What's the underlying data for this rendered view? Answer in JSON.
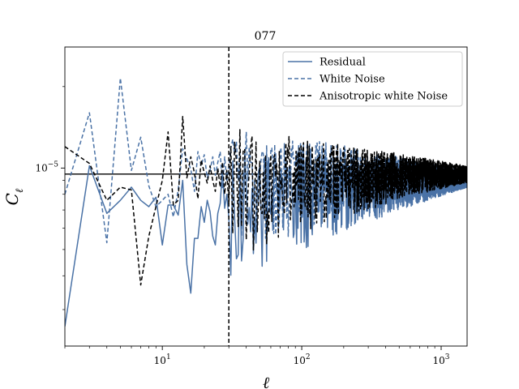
{
  "chart_data": {
    "type": "line",
    "title": "077",
    "xlabel": "ℓ",
    "ylabel": "C",
    "ylabel_subscript": "ℓ",
    "xscale": "log",
    "yscale": "log",
    "xlim": [
      2,
      1535
    ],
    "ylim": [
      2.2e-06,
      2.8e-05
    ],
    "x_ticks": [
      {
        "value": 10,
        "base": "10",
        "exp": "1"
      },
      {
        "value": 100,
        "base": "10",
        "exp": "2"
      },
      {
        "value": 1000,
        "base": "10",
        "exp": "3"
      }
    ],
    "y_ticks": [
      {
        "value": 1e-05,
        "base": "10",
        "exp": "−5"
      }
    ],
    "reference_lines": {
      "horizontal_y": 9.5e-06,
      "vertical_x": 30
    },
    "legend": {
      "position": "top-right",
      "entries": [
        {
          "label": "Residual",
          "color": "#4a72a6",
          "style": "solid"
        },
        {
          "label": "White Noise",
          "color": "#4a72a6",
          "style": "dashed"
        },
        {
          "label": "Anisotropic white Noise",
          "color": "#000000",
          "style": "dashed"
        }
      ]
    },
    "series": [
      {
        "name": "Residual",
        "color": "#4a72a6",
        "style": "solid",
        "x": [
          2,
          3,
          4,
          5,
          6,
          7,
          8,
          9,
          10,
          11,
          12,
          13,
          14,
          15,
          16,
          17,
          18,
          19,
          20,
          21,
          22,
          23,
          24,
          25,
          26,
          27,
          28,
          29
        ],
        "values": [
          2.6e-06,
          1.02e-05,
          6.8e-06,
          7.6e-06,
          8.5e-06,
          7.6e-06,
          7.2e-06,
          7.8e-06,
          5.2e-06,
          7.3e-06,
          7.3e-06,
          6.7e-06,
          9e-06,
          4.4e-06,
          3.45e-06,
          5.5e-06,
          5.5e-06,
          7.2e-06,
          6.3e-06,
          7.6e-06,
          6.9e-06,
          5.6e-06,
          5.2e-06,
          6.8e-06,
          7.4e-06,
          9.8e-06,
          7.1e-06,
          8e-06
        ]
      },
      {
        "name": "White Noise",
        "color": "#4a72a6",
        "style": "dashed",
        "x": [
          2,
          3,
          4,
          5,
          6,
          7,
          8,
          9,
          10,
          11,
          12,
          13,
          14,
          15,
          16,
          17,
          18,
          19,
          20,
          21,
          22,
          23,
          24,
          25,
          26,
          27,
          28,
          29
        ],
        "values": [
          8e-06,
          1.6e-05,
          5.3e-06,
          2.15e-05,
          9.8e-06,
          1.3e-05,
          8.6e-06,
          7.2e-06,
          7.6e-06,
          8e-06,
          6.6e-06,
          8.3e-06,
          1.18e-05,
          1.08e-05,
          9.9e-06,
          8.2e-06,
          1.15e-05,
          1.02e-05,
          1.12e-05,
          9.2e-06,
          9.8e-06,
          1.1e-05,
          9.4e-06,
          1.05e-05,
          1.15e-05,
          8.4e-06,
          1.1e-05,
          9e-06
        ]
      },
      {
        "name": "Anisotropic white Noise",
        "color": "#000000",
        "style": "dashed",
        "x": [
          2,
          3,
          4,
          5,
          6,
          7,
          8,
          9,
          10,
          11,
          12,
          13,
          14,
          15,
          16,
          17,
          18,
          19,
          20,
          21,
          22,
          23,
          24,
          25,
          26,
          27,
          28,
          29
        ],
        "values": [
          1.2e-05,
          1.04e-05,
          7.6e-06,
          8.5e-06,
          8.3e-06,
          3.7e-06,
          5.6e-06,
          7.2e-06,
          9e-06,
          1.36e-05,
          7.3e-06,
          7.6e-06,
          1.55e-05,
          9.2e-06,
          1.1e-05,
          9.6e-06,
          7.7e-06,
          1.07e-05,
          9.6e-06,
          8.8e-06,
          1.02e-05,
          9e-06,
          8.2e-06,
          1e-05,
          8.5e-06,
          1.05e-05,
          8e-06,
          9.8e-06
        ]
      }
    ]
  }
}
